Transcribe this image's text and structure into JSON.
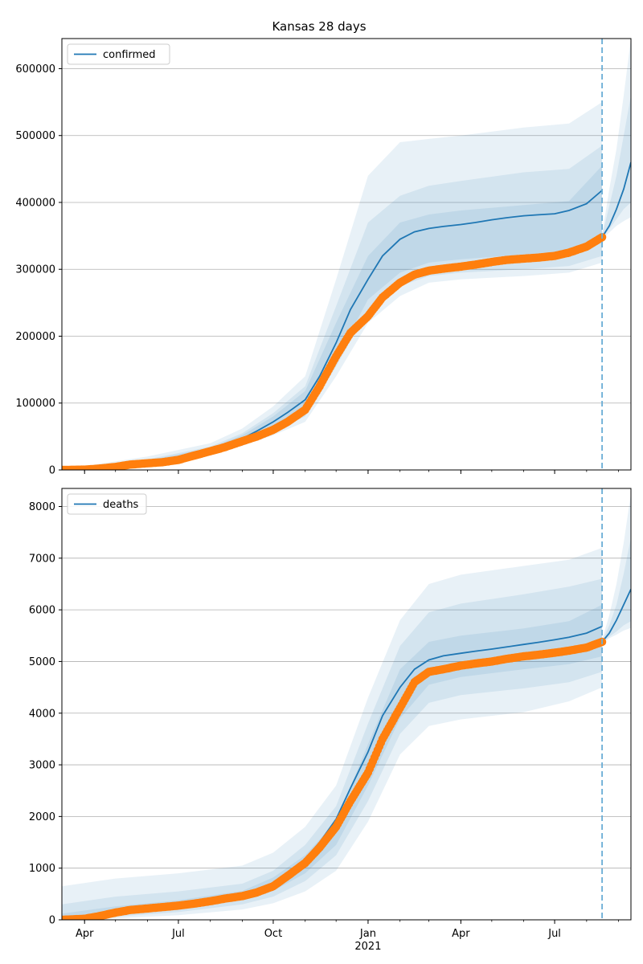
{
  "figure_title": "Kansas 28 days",
  "chart_data": [
    {
      "type": "line",
      "legend": "confirmed",
      "legend_position": "top-left",
      "grid": "horizontal",
      "x_axis": {
        "ticks": [
          "2020-04-01",
          "2020-07-01",
          "2020-10-01",
          "2021-01-01",
          "2021-04-01",
          "2021-07-01"
        ],
        "tick_labels": [
          "Apr",
          "Jul",
          "Oct",
          "Jan",
          "Apr",
          "Jul"
        ],
        "year_label": "",
        "range": [
          "2020-03-10",
          "2021-09-13"
        ]
      },
      "y_axis": {
        "range": [
          0,
          645000
        ],
        "ticks": [
          0,
          100000,
          200000,
          300000,
          400000,
          500000,
          600000
        ]
      },
      "forecast_start": "2021-08-16",
      "observed": {
        "color": "#ff7f0e",
        "points": [
          [
            "2020-03-10",
            0
          ],
          [
            "2020-04-01",
            500
          ],
          [
            "2020-04-15",
            2000
          ],
          [
            "2020-05-01",
            4500
          ],
          [
            "2020-05-15",
            8000
          ],
          [
            "2020-06-01",
            10000
          ],
          [
            "2020-06-15",
            11500
          ],
          [
            "2020-07-01",
            15000
          ],
          [
            "2020-07-15",
            21000
          ],
          [
            "2020-08-01",
            28000
          ],
          [
            "2020-08-15",
            34000
          ],
          [
            "2020-09-01",
            43000
          ],
          [
            "2020-09-15",
            50000
          ],
          [
            "2020-10-01",
            60000
          ],
          [
            "2020-10-15",
            72000
          ],
          [
            "2020-11-01",
            90000
          ],
          [
            "2020-11-15",
            125000
          ],
          [
            "2020-12-01",
            170000
          ],
          [
            "2020-12-15",
            205000
          ],
          [
            "2021-01-01",
            230000
          ],
          [
            "2021-01-15",
            258000
          ],
          [
            "2021-02-01",
            280000
          ],
          [
            "2021-02-15",
            292000
          ],
          [
            "2021-03-01",
            298000
          ],
          [
            "2021-03-15",
            301000
          ],
          [
            "2021-04-01",
            304000
          ],
          [
            "2021-04-15",
            307000
          ],
          [
            "2021-05-01",
            311000
          ],
          [
            "2021-05-15",
            314000
          ],
          [
            "2021-06-01",
            316000
          ],
          [
            "2021-06-15",
            317500
          ],
          [
            "2021-07-01",
            320000
          ],
          [
            "2021-07-15",
            325000
          ],
          [
            "2021-08-01",
            334000
          ],
          [
            "2021-08-16",
            348000
          ]
        ]
      },
      "model": {
        "color": "#1f77b4",
        "points": [
          [
            "2020-03-10",
            0
          ],
          [
            "2020-04-01",
            800
          ],
          [
            "2020-04-15",
            3000
          ],
          [
            "2020-05-01",
            6000
          ],
          [
            "2020-05-15",
            9000
          ],
          [
            "2020-06-01",
            11000
          ],
          [
            "2020-06-15",
            13000
          ],
          [
            "2020-07-01",
            16000
          ],
          [
            "2020-07-15",
            22000
          ],
          [
            "2020-08-01",
            30000
          ],
          [
            "2020-08-15",
            37000
          ],
          [
            "2020-09-01",
            47000
          ],
          [
            "2020-09-15",
            58000
          ],
          [
            "2020-10-01",
            72000
          ],
          [
            "2020-10-15",
            86000
          ],
          [
            "2020-11-01",
            105000
          ],
          [
            "2020-11-15",
            140000
          ],
          [
            "2020-12-01",
            190000
          ],
          [
            "2020-12-15",
            240000
          ],
          [
            "2021-01-01",
            285000
          ],
          [
            "2021-01-15",
            320000
          ],
          [
            "2021-02-01",
            345000
          ],
          [
            "2021-02-15",
            356000
          ],
          [
            "2021-03-01",
            361000
          ],
          [
            "2021-03-15",
            364000
          ],
          [
            "2021-04-01",
            367000
          ],
          [
            "2021-04-15",
            370000
          ],
          [
            "2021-05-01",
            374000
          ],
          [
            "2021-05-15",
            377000
          ],
          [
            "2021-06-01",
            380000
          ],
          [
            "2021-06-15",
            381500
          ],
          [
            "2021-07-01",
            383000
          ],
          [
            "2021-07-15",
            388000
          ],
          [
            "2021-08-01",
            398000
          ],
          [
            "2021-08-16",
            418000
          ]
        ]
      },
      "forecast": {
        "points": [
          [
            "2021-08-16",
            348000
          ],
          [
            "2021-08-23",
            365000
          ],
          [
            "2021-08-30",
            390000
          ],
          [
            "2021-09-06",
            420000
          ],
          [
            "2021-09-13",
            460000
          ]
        ]
      },
      "intervals": {
        "dates": [
          "2020-03-10",
          "2020-04-15",
          "2020-06-01",
          "2020-08-01",
          "2020-09-01",
          "2020-10-01",
          "2020-11-01",
          "2020-12-01",
          "2021-01-01",
          "2021-02-01",
          "2021-03-01",
          "2021-04-01",
          "2021-06-01",
          "2021-07-15",
          "2021-08-16"
        ],
        "bands": [
          {
            "lower": [
              0,
              1500,
              8000,
              22000,
              36000,
              52000,
              72000,
              140000,
              220000,
              260000,
              280000,
              285000,
              290000,
              295000,
              310000
            ],
            "upper": [
              0,
              9000,
              20000,
              40000,
              62000,
              95000,
              140000,
              285000,
              440000,
              490000,
              495000,
              500000,
              512000,
              518000,
              550000
            ]
          },
          {
            "lower": [
              0,
              2000,
              9000,
              25000,
              40000,
              57000,
              80000,
              155000,
              240000,
              275000,
              290000,
              295000,
              300000,
              305000,
              320000
            ],
            "upper": [
              0,
              6000,
              16000,
              35000,
              55000,
              85000,
              125000,
              245000,
              370000,
              410000,
              425000,
              432000,
              445000,
              450000,
              485000
            ]
          },
          {
            "lower": [
              0,
              2500,
              10000,
              27000,
              43000,
              62000,
              88000,
              165000,
              255000,
              295000,
              310000,
              315000,
              322000,
              326000,
              340000
            ],
            "upper": [
              0,
              4500,
              14000,
              33000,
              52000,
              80000,
              118000,
              220000,
              320000,
              370000,
              382000,
              388000,
              396000,
              402000,
              455000
            ]
          }
        ]
      },
      "forecast_intervals": {
        "dates": [
          "2021-08-16",
          "2021-08-23",
          "2021-08-30",
          "2021-09-06",
          "2021-09-13"
        ],
        "bands": [
          {
            "lower": [
              345000,
              355000,
              365000,
              372000,
              378000
            ],
            "upper": [
              352000,
              420000,
              480000,
              560000,
              645000
            ]
          },
          {
            "lower": [
              346000,
              360000,
              375000,
              390000,
              400000
            ],
            "upper": [
              350000,
              395000,
              440000,
              500000,
              560000
            ]
          }
        ]
      }
    },
    {
      "type": "line",
      "legend": "deaths",
      "legend_position": "top-left",
      "grid": "horizontal",
      "x_axis": {
        "ticks": [
          "2020-04-01",
          "2020-07-01",
          "2020-10-01",
          "2021-01-01",
          "2021-04-01",
          "2021-07-01"
        ],
        "tick_labels": [
          "Apr",
          "Jul",
          "Oct",
          "Jan",
          "Apr",
          "Jul"
        ],
        "year_label": "2021",
        "range": [
          "2020-03-10",
          "2021-09-13"
        ]
      },
      "y_axis": {
        "range": [
          0,
          8350
        ],
        "ticks": [
          0,
          1000,
          2000,
          3000,
          4000,
          5000,
          6000,
          7000,
          8000
        ]
      },
      "forecast_start": "2021-08-16",
      "observed": {
        "color": "#ff7f0e",
        "points": [
          [
            "2020-03-10",
            0
          ],
          [
            "2020-04-01",
            20
          ],
          [
            "2020-04-15",
            70
          ],
          [
            "2020-05-01",
            140
          ],
          [
            "2020-05-15",
            190
          ],
          [
            "2020-06-01",
            220
          ],
          [
            "2020-06-15",
            245
          ],
          [
            "2020-07-01",
            275
          ],
          [
            "2020-07-15",
            310
          ],
          [
            "2020-08-01",
            360
          ],
          [
            "2020-08-15",
            410
          ],
          [
            "2020-09-01",
            460
          ],
          [
            "2020-09-15",
            530
          ],
          [
            "2020-10-01",
            650
          ],
          [
            "2020-10-15",
            850
          ],
          [
            "2020-11-01",
            1100
          ],
          [
            "2020-11-15",
            1400
          ],
          [
            "2020-12-01",
            1800
          ],
          [
            "2020-12-15",
            2300
          ],
          [
            "2021-01-01",
            2850
          ],
          [
            "2021-01-15",
            3500
          ],
          [
            "2021-02-01",
            4100
          ],
          [
            "2021-02-15",
            4600
          ],
          [
            "2021-03-01",
            4800
          ],
          [
            "2021-03-15",
            4850
          ],
          [
            "2021-04-01",
            4920
          ],
          [
            "2021-04-15",
            4960
          ],
          [
            "2021-05-01",
            5000
          ],
          [
            "2021-05-15",
            5050
          ],
          [
            "2021-06-01",
            5100
          ],
          [
            "2021-06-15",
            5130
          ],
          [
            "2021-07-01",
            5170
          ],
          [
            "2021-07-15",
            5210
          ],
          [
            "2021-08-01",
            5270
          ],
          [
            "2021-08-16",
            5380
          ]
        ]
      },
      "model": {
        "color": "#1f77b4",
        "points": [
          [
            "2020-03-10",
            0
          ],
          [
            "2020-04-01",
            25
          ],
          [
            "2020-04-15",
            80
          ],
          [
            "2020-05-01",
            150
          ],
          [
            "2020-05-15",
            200
          ],
          [
            "2020-06-01",
            230
          ],
          [
            "2020-06-15",
            255
          ],
          [
            "2020-07-01",
            280
          ],
          [
            "2020-07-15",
            320
          ],
          [
            "2020-08-01",
            370
          ],
          [
            "2020-08-15",
            420
          ],
          [
            "2020-09-01",
            480
          ],
          [
            "2020-09-15",
            570
          ],
          [
            "2020-10-01",
            720
          ],
          [
            "2020-10-15",
            920
          ],
          [
            "2020-11-01",
            1180
          ],
          [
            "2020-11-15",
            1500
          ],
          [
            "2020-12-01",
            1950
          ],
          [
            "2020-12-15",
            2550
          ],
          [
            "2021-01-01",
            3250
          ],
          [
            "2021-01-15",
            3950
          ],
          [
            "2021-02-01",
            4500
          ],
          [
            "2021-02-15",
            4850
          ],
          [
            "2021-03-01",
            5030
          ],
          [
            "2021-03-15",
            5110
          ],
          [
            "2021-04-01",
            5160
          ],
          [
            "2021-04-15",
            5200
          ],
          [
            "2021-05-01",
            5240
          ],
          [
            "2021-05-15",
            5280
          ],
          [
            "2021-06-01",
            5330
          ],
          [
            "2021-06-15",
            5370
          ],
          [
            "2021-07-01",
            5420
          ],
          [
            "2021-07-15",
            5470
          ],
          [
            "2021-08-01",
            5550
          ],
          [
            "2021-08-16",
            5680
          ]
        ]
      },
      "forecast": {
        "points": [
          [
            "2021-08-16",
            5380
          ],
          [
            "2021-08-23",
            5550
          ],
          [
            "2021-08-30",
            5800
          ],
          [
            "2021-09-06",
            6100
          ],
          [
            "2021-09-13",
            6400
          ]
        ]
      },
      "intervals": {
        "dates": [
          "2020-03-10",
          "2020-05-01",
          "2020-07-01",
          "2020-09-01",
          "2020-10-01",
          "2020-11-01",
          "2020-12-01",
          "2021-01-01",
          "2021-02-01",
          "2021-03-01",
          "2021-04-01",
          "2021-06-01",
          "2021-07-15",
          "2021-08-16"
        ],
        "bands": [
          {
            "lower": [
              0,
              30,
              90,
              200,
              320,
              550,
              950,
              1900,
              3200,
              3750,
              3880,
              4020,
              4230,
              4500
            ],
            "upper": [
              650,
              800,
              900,
              1050,
              1300,
              1800,
              2600,
              4300,
              5800,
              6500,
              6680,
              6850,
              6970,
              7200
            ]
          },
          {
            "lower": [
              0,
              60,
              150,
              300,
              450,
              750,
              1250,
              2300,
              3600,
              4200,
              4350,
              4480,
              4600,
              4800
            ],
            "upper": [
              300,
              450,
              550,
              700,
              950,
              1450,
              2200,
              3800,
              5300,
              5950,
              6120,
              6300,
              6450,
              6600
            ]
          },
          {
            "lower": [
              0,
              100,
              200,
              380,
              560,
              900,
              1450,
              2600,
              3900,
              4550,
              4700,
              4850,
              4950,
              5100
            ],
            "upper": [
              120,
              260,
              380,
              560,
              820,
              1250,
              1900,
              3400,
              4850,
              5380,
              5500,
              5640,
              5780,
              6100
            ]
          }
        ]
      },
      "forecast_intervals": {
        "dates": [
          "2021-08-16",
          "2021-08-23",
          "2021-08-30",
          "2021-09-06",
          "2021-09-13"
        ],
        "bands": [
          {
            "lower": [
              5350,
              5450,
              5520,
              5600,
              5650
            ],
            "upper": [
              5420,
              5900,
              6500,
              7300,
              8250
            ]
          },
          {
            "lower": [
              5360,
              5480,
              5580,
              5700,
              5780
            ],
            "upper": [
              5400,
              5700,
              6100,
              6700,
              7400
            ]
          }
        ]
      }
    }
  ]
}
